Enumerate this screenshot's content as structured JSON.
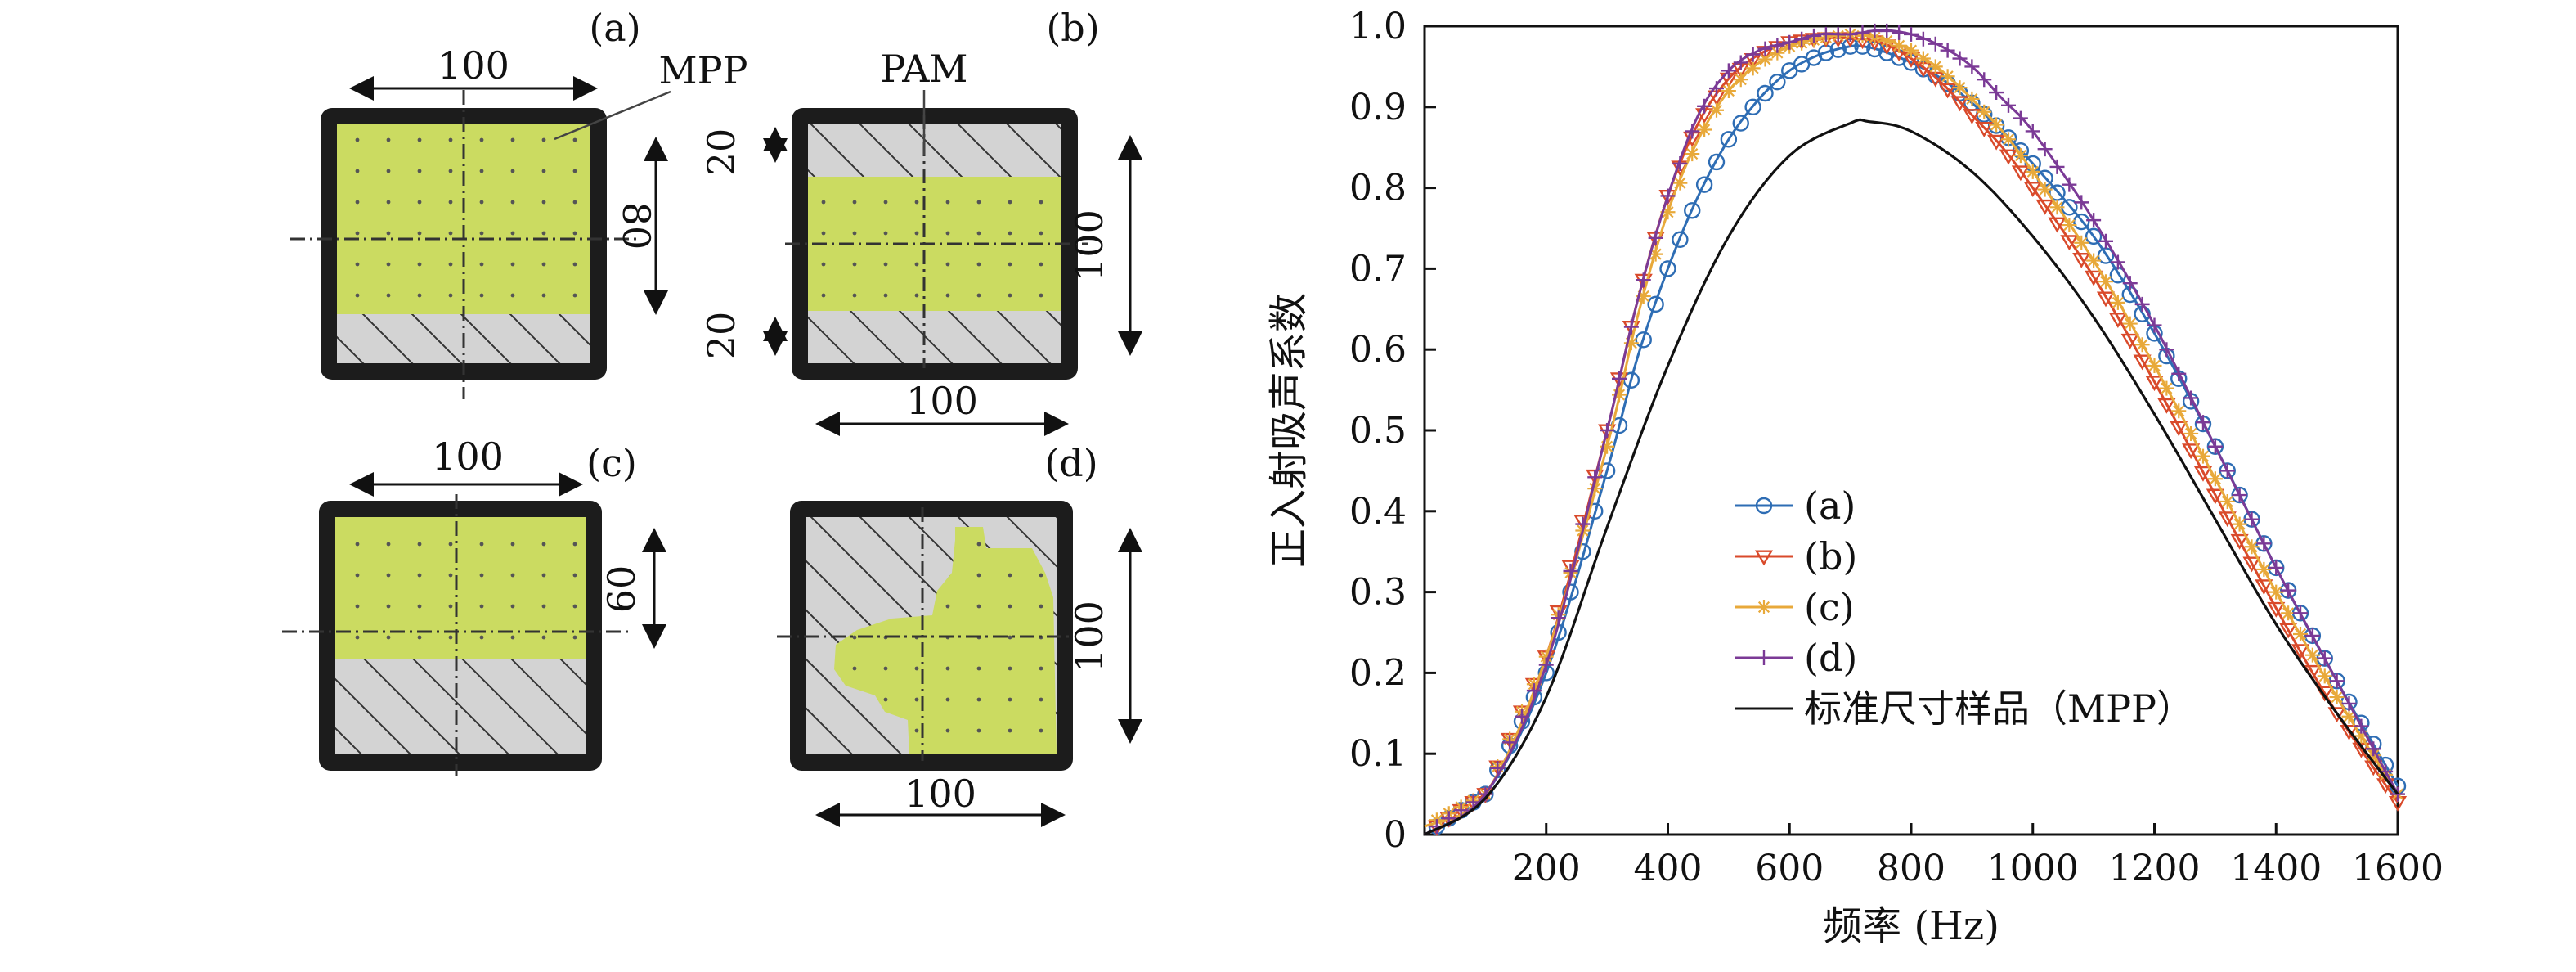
{
  "panels": [
    {
      "id": "a",
      "tag": "(a)",
      "top_label": "100",
      "side_label": "80",
      "material_label": "MPP",
      "colors": {
        "frame": "#1c1c1c",
        "mpp": "#cbdb61",
        "pam": "#d3d3d3"
      }
    },
    {
      "id": "b",
      "tag": "(b)",
      "bottom_label": "100",
      "side_label": "100",
      "left_top_label": "20",
      "left_bottom_label": "20",
      "material_label": "PAM",
      "colors": {
        "frame": "#1c1c1c",
        "mpp": "#cbdb61",
        "pam": "#d3d3d3"
      }
    },
    {
      "id": "c",
      "tag": "(c)",
      "top_label": "100",
      "side_label": "60",
      "colors": {
        "frame": "#1c1c1c",
        "mpp": "#cbdb61",
        "pam": "#d3d3d3"
      }
    },
    {
      "id": "d",
      "tag": "(d)",
      "bottom_label": "100",
      "side_label": "100",
      "colors": {
        "frame": "#1c1c1c",
        "mpp": "#cbdb61",
        "pam": "#d3d3d3"
      }
    }
  ],
  "chart_data": {
    "type": "line",
    "xlabel": "频率 (Hz)",
    "ylabel": "正入射吸声系数",
    "xlim": [
      0,
      1600
    ],
    "ylim": [
      0,
      1.0
    ],
    "xticks": [
      200,
      400,
      600,
      800,
      1000,
      1200,
      1400,
      1600
    ],
    "yticks": [
      0,
      0.1,
      0.2,
      0.3,
      0.4,
      0.5,
      0.6,
      0.7,
      0.8,
      0.9,
      1.0
    ],
    "ytick_labels": [
      "0",
      "0.1",
      "0.2",
      "0.3",
      "0.4",
      "0.5",
      "0.6",
      "0.7",
      "0.8",
      "0.9",
      "1.0"
    ],
    "grid": false,
    "legend_position": "center-left",
    "series": [
      {
        "name": "(a)",
        "color": "#2e6db4",
        "marker": "circle",
        "x": [
          0,
          100,
          200,
          300,
          350,
          400,
          450,
          500,
          550,
          600,
          650,
          700,
          720,
          750,
          800,
          850,
          900,
          950,
          1000,
          1100,
          1200,
          1300,
          1400,
          1500,
          1600
        ],
        "y": [
          0,
          0.05,
          0.2,
          0.45,
          0.59,
          0.7,
          0.79,
          0.86,
          0.91,
          0.945,
          0.965,
          0.975,
          0.975,
          0.97,
          0.955,
          0.935,
          0.905,
          0.87,
          0.83,
          0.74,
          0.62,
          0.48,
          0.33,
          0.19,
          0.06
        ]
      },
      {
        "name": "(b)",
        "color": "#d94a2b",
        "marker": "triangle-down",
        "x": [
          0,
          100,
          200,
          300,
          350,
          400,
          450,
          500,
          550,
          600,
          650,
          700,
          750,
          800,
          850,
          900,
          950,
          1000,
          1100,
          1200,
          1300,
          1400,
          1500,
          1600
        ],
        "y": [
          0,
          0.05,
          0.22,
          0.5,
          0.66,
          0.79,
          0.88,
          0.935,
          0.965,
          0.98,
          0.985,
          0.985,
          0.98,
          0.96,
          0.93,
          0.89,
          0.85,
          0.8,
          0.69,
          0.56,
          0.42,
          0.28,
          0.15,
          0.04
        ]
      },
      {
        "name": "(c)",
        "color": "#e8a93a",
        "marker": "star",
        "x": [
          0,
          100,
          200,
          300,
          350,
          400,
          450,
          500,
          550,
          600,
          650,
          700,
          750,
          800,
          850,
          900,
          950,
          1000,
          1100,
          1200,
          1300,
          1400,
          1500,
          1600
        ],
        "y": [
          0.01,
          0.05,
          0.22,
          0.48,
          0.64,
          0.77,
          0.86,
          0.92,
          0.955,
          0.975,
          0.985,
          0.99,
          0.985,
          0.97,
          0.945,
          0.91,
          0.87,
          0.82,
          0.71,
          0.58,
          0.44,
          0.3,
          0.17,
          0.05
        ]
      },
      {
        "name": "(d)",
        "color": "#7b3a96",
        "marker": "plus",
        "x": [
          0,
          100,
          200,
          300,
          350,
          400,
          450,
          500,
          550,
          600,
          650,
          700,
          750,
          800,
          850,
          900,
          950,
          1000,
          1100,
          1200,
          1300,
          1400,
          1500,
          1600
        ],
        "y": [
          0,
          0.05,
          0.21,
          0.5,
          0.66,
          0.79,
          0.89,
          0.945,
          0.97,
          0.98,
          0.99,
          0.99,
          0.995,
          0.99,
          0.975,
          0.95,
          0.91,
          0.87,
          0.76,
          0.63,
          0.48,
          0.33,
          0.19,
          0.05
        ]
      },
      {
        "name": "标准尺寸样品（MPP）",
        "color": "#111111",
        "marker": "none",
        "x": [
          0,
          100,
          200,
          300,
          400,
          500,
          600,
          700,
          730,
          800,
          900,
          1000,
          1100,
          1200,
          1300,
          1400,
          1500,
          1600
        ],
        "y": [
          0,
          0.045,
          0.17,
          0.38,
          0.58,
          0.74,
          0.84,
          0.88,
          0.882,
          0.87,
          0.82,
          0.74,
          0.64,
          0.52,
          0.39,
          0.26,
          0.15,
          0.05
        ]
      }
    ]
  }
}
